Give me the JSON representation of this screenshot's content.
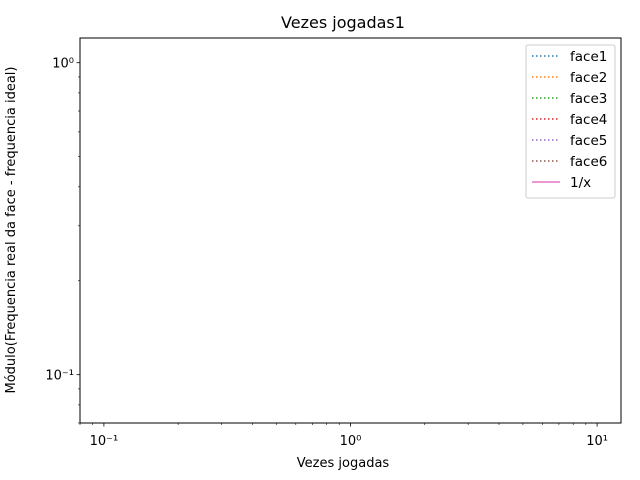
{
  "chart_data": {
    "type": "line",
    "title": "Vezes jogadas1",
    "xlabel": "Vezes jogadas",
    "ylabel": "Módulo(Frequencia real da face - frequencia ideal)",
    "xscale": "log",
    "yscale": "log",
    "xlim": [
      0.08,
      12.5
    ],
    "ylim": [
      0.07,
      1.2
    ],
    "x_major_ticks": [
      {
        "value": 0.1,
        "label": "10⁻¹"
      },
      {
        "value": 1,
        "label": "10⁰"
      },
      {
        "value": 10,
        "label": "10¹"
      }
    ],
    "y_major_ticks": [
      {
        "value": 0.1,
        "label": "10⁻¹"
      },
      {
        "value": 1,
        "label": "10⁰"
      }
    ],
    "grid": false,
    "legend_position": "top-right",
    "series": [
      {
        "name": "face1",
        "color": "#1f77b4",
        "linestyle": "dotted",
        "x": [],
        "y": []
      },
      {
        "name": "face2",
        "color": "#ff7f0e",
        "linestyle": "dotted",
        "x": [],
        "y": []
      },
      {
        "name": "face3",
        "color": "#2ca02c",
        "linestyle": "dotted",
        "x": [],
        "y": []
      },
      {
        "name": "face4",
        "color": "#d62728",
        "linestyle": "dotted",
        "x": [],
        "y": []
      },
      {
        "name": "face5",
        "color": "#9467bd",
        "linestyle": "dotted",
        "x": [],
        "y": []
      },
      {
        "name": "face6",
        "color": "#8c564b",
        "linestyle": "dotted",
        "x": [],
        "y": []
      },
      {
        "name": "1/x",
        "color": "#e377c2",
        "linestyle": "solid",
        "x": [],
        "y": []
      }
    ]
  }
}
